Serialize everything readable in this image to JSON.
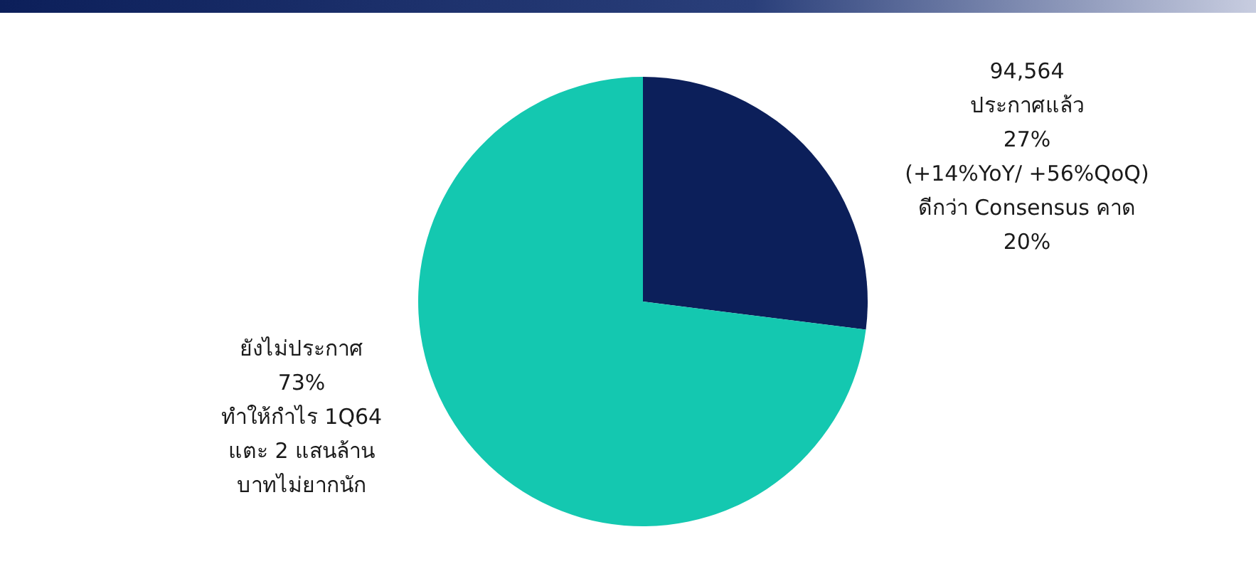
{
  "chart_data": {
    "type": "pie",
    "categories": [
      "ประกาศแล้ว",
      "ยังไม่ประกาศ"
    ],
    "values": [
      27,
      73
    ],
    "value_labels": [
      "27%",
      "73%"
    ],
    "colors": [
      "#0c1f5a",
      "#14c8b0"
    ],
    "annotations": [
      "94,564",
      "(+14%YoY/ +56%QoQ)",
      "ดีกว่า Consensus คาด",
      "20%",
      "ทำให้กำไร 1Q64",
      "แตะ 2 แสนล้าน",
      "บาทไม่ยากนัก"
    ]
  }
}
